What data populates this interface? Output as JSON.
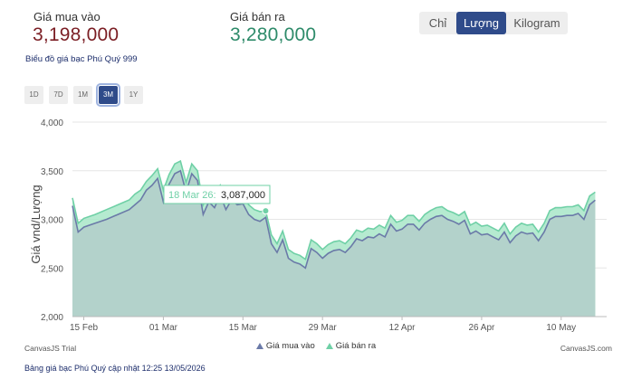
{
  "header": {
    "buy_label": "Giá mua vào",
    "buy_value": "3,198,000",
    "sell_label": "Giá bán ra",
    "sell_value": "3,280,000",
    "units": [
      "Chỉ",
      "Lượng",
      "Kilogram"
    ],
    "selected_unit": "Lượng"
  },
  "chart_title": "Biểu đồ giá bạc Phú Quý 999",
  "ranges": [
    "1D",
    "7D",
    "1M",
    "3M",
    "1Y"
  ],
  "selected_range": "3M",
  "tooltip": {
    "date": "18 Mar 26:",
    "value": "3,087,000"
  },
  "footer": {
    "trial": "CanvasJS Trial",
    "credit": "CanvasJS.com",
    "update_note": "Bảng giá bạc Phú Quý cập nhật 12:25 13/05/2026"
  },
  "colors": {
    "buy": "#6b7aa8",
    "sell": "#6fd0a6",
    "accent": "#2f4b8a"
  },
  "chart_data": {
    "type": "area",
    "ylabel": "Giá vnd/Lượng",
    "ylim": [
      2000,
      4000
    ],
    "y_ticks": [
      "2,000",
      "2,500",
      "3,000",
      "3,500",
      "4,000"
    ],
    "x_ticks": [
      "15 Feb",
      "01 Mar",
      "15 Mar",
      "29 Mar",
      "12 Apr",
      "26 Apr",
      "10 May"
    ],
    "x_tick_days": [
      3,
      17,
      31,
      45,
      59,
      73,
      87
    ],
    "x_range_days": [
      1,
      95
    ],
    "legend_placement": "bottom",
    "series": [
      {
        "name": "Giá mua vào",
        "points": [
          [
            1,
            3140
          ],
          [
            2,
            2870
          ],
          [
            3,
            2920
          ],
          [
            5,
            2960
          ],
          [
            7,
            3000
          ],
          [
            9,
            3050
          ],
          [
            11,
            3100
          ],
          [
            12,
            3150
          ],
          [
            13,
            3200
          ],
          [
            14,
            3300
          ],
          [
            15,
            3350
          ],
          [
            16,
            3420
          ],
          [
            17,
            3180
          ],
          [
            18,
            3360
          ],
          [
            19,
            3470
          ],
          [
            20,
            3500
          ],
          [
            21,
            3280
          ],
          [
            22,
            3470
          ],
          [
            23,
            3400
          ],
          [
            24,
            3050
          ],
          [
            25,
            3180
          ],
          [
            26,
            3120
          ],
          [
            27,
            3250
          ],
          [
            28,
            3100
          ],
          [
            29,
            3200
          ],
          [
            30,
            3150
          ],
          [
            31,
            3160
          ],
          [
            32,
            3050
          ],
          [
            33,
            3000
          ],
          [
            34,
            2980
          ],
          [
            35,
            3020
          ],
          [
            36,
            2750
          ],
          [
            37,
            2660
          ],
          [
            38,
            2790
          ],
          [
            39,
            2600
          ],
          [
            40,
            2560
          ],
          [
            41,
            2540
          ],
          [
            42,
            2500
          ],
          [
            43,
            2700
          ],
          [
            44,
            2660
          ],
          [
            45,
            2600
          ],
          [
            46,
            2650
          ],
          [
            47,
            2680
          ],
          [
            48,
            2690
          ],
          [
            49,
            2660
          ],
          [
            50,
            2720
          ],
          [
            51,
            2800
          ],
          [
            52,
            2780
          ],
          [
            53,
            2820
          ],
          [
            54,
            2810
          ],
          [
            55,
            2850
          ],
          [
            56,
            2820
          ],
          [
            57,
            2950
          ],
          [
            58,
            2880
          ],
          [
            59,
            2900
          ],
          [
            60,
            2950
          ],
          [
            61,
            2950
          ],
          [
            62,
            2890
          ],
          [
            63,
            2960
          ],
          [
            64,
            3000
          ],
          [
            65,
            3030
          ],
          [
            66,
            3040
          ],
          [
            67,
            3000
          ],
          [
            68,
            2980
          ],
          [
            69,
            2950
          ],
          [
            70,
            2990
          ],
          [
            71,
            2850
          ],
          [
            72,
            2880
          ],
          [
            73,
            2840
          ],
          [
            74,
            2850
          ],
          [
            75,
            2820
          ],
          [
            76,
            2790
          ],
          [
            77,
            2870
          ],
          [
            78,
            2760
          ],
          [
            79,
            2830
          ],
          [
            80,
            2870
          ],
          [
            81,
            2850
          ],
          [
            82,
            2860
          ],
          [
            83,
            2780
          ],
          [
            84,
            2870
          ],
          [
            85,
            3000
          ],
          [
            86,
            3030
          ],
          [
            87,
            3030
          ],
          [
            88,
            3040
          ],
          [
            89,
            3040
          ],
          [
            90,
            3060
          ],
          [
            91,
            3000
          ],
          [
            92,
            3150
          ],
          [
            93,
            3198
          ]
        ]
      },
      {
        "name": "Giá bán ra",
        "points": [
          [
            1,
            3220
          ],
          [
            2,
            2960
          ],
          [
            3,
            3010
          ],
          [
            5,
            3050
          ],
          [
            7,
            3100
          ],
          [
            9,
            3150
          ],
          [
            11,
            3200
          ],
          [
            12,
            3260
          ],
          [
            13,
            3300
          ],
          [
            14,
            3390
          ],
          [
            15,
            3450
          ],
          [
            16,
            3520
          ],
          [
            17,
            3300
          ],
          [
            18,
            3460
          ],
          [
            19,
            3570
          ],
          [
            20,
            3600
          ],
          [
            21,
            3380
          ],
          [
            22,
            3570
          ],
          [
            23,
            3500
          ],
          [
            24,
            3150
          ],
          [
            25,
            3280
          ],
          [
            26,
            3220
          ],
          [
            27,
            3350
          ],
          [
            28,
            3200
          ],
          [
            29,
            3300
          ],
          [
            30,
            3250
          ],
          [
            31,
            3260
          ],
          [
            32,
            3150
          ],
          [
            33,
            3100
          ],
          [
            34,
            3080
          ],
          [
            35,
            3087
          ],
          [
            36,
            2840
          ],
          [
            37,
            2750
          ],
          [
            38,
            2880
          ],
          [
            39,
            2690
          ],
          [
            40,
            2650
          ],
          [
            41,
            2630
          ],
          [
            42,
            2590
          ],
          [
            43,
            2790
          ],
          [
            44,
            2750
          ],
          [
            45,
            2690
          ],
          [
            46,
            2740
          ],
          [
            47,
            2770
          ],
          [
            48,
            2780
          ],
          [
            49,
            2750
          ],
          [
            50,
            2810
          ],
          [
            51,
            2890
          ],
          [
            52,
            2870
          ],
          [
            53,
            2910
          ],
          [
            54,
            2900
          ],
          [
            55,
            2940
          ],
          [
            56,
            2910
          ],
          [
            57,
            3040
          ],
          [
            58,
            2970
          ],
          [
            59,
            2990
          ],
          [
            60,
            3040
          ],
          [
            61,
            3040
          ],
          [
            62,
            2980
          ],
          [
            63,
            3050
          ],
          [
            64,
            3090
          ],
          [
            65,
            3120
          ],
          [
            66,
            3130
          ],
          [
            67,
            3090
          ],
          [
            68,
            3070
          ],
          [
            69,
            3040
          ],
          [
            70,
            3080
          ],
          [
            71,
            2940
          ],
          [
            72,
            2970
          ],
          [
            73,
            2930
          ],
          [
            74,
            2940
          ],
          [
            75,
            2910
          ],
          [
            76,
            2880
          ],
          [
            77,
            2960
          ],
          [
            78,
            2850
          ],
          [
            79,
            2920
          ],
          [
            80,
            2960
          ],
          [
            81,
            2940
          ],
          [
            82,
            2950
          ],
          [
            83,
            2870
          ],
          [
            84,
            2960
          ],
          [
            85,
            3090
          ],
          [
            86,
            3120
          ],
          [
            87,
            3120
          ],
          [
            88,
            3130
          ],
          [
            89,
            3130
          ],
          [
            90,
            3150
          ],
          [
            91,
            3090
          ],
          [
            92,
            3240
          ],
          [
            93,
            3280
          ]
        ]
      }
    ],
    "highlight": {
      "series": "Giá bán ra",
      "x_day": 35,
      "y": 3087
    }
  }
}
